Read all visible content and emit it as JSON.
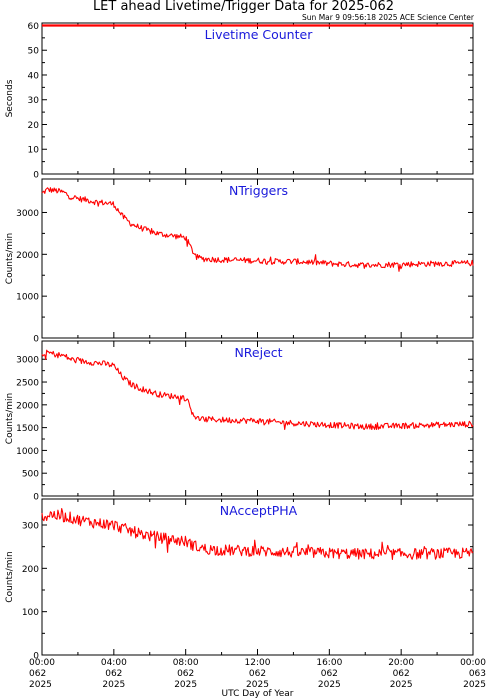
{
  "header": {
    "title": "LET ahead Livetime/Trigger Data for 2025-062",
    "subtitle": "Sun Mar  9 09:56:18 2025 ACE Science Center"
  },
  "colors": {
    "series": "#ff0000",
    "label": "#1a1adb",
    "axis": "#000000"
  },
  "chart_data": [
    {
      "type": "line",
      "title": "Livetime Counter",
      "ylabel": "Seconds",
      "ylim": [
        0,
        61
      ],
      "yticks": [
        "0",
        "10",
        "20",
        "30",
        "40",
        "50",
        "60"
      ],
      "x": [
        0,
        24
      ],
      "series": [
        {
          "values": [
            60,
            60
          ]
        }
      ]
    },
    {
      "type": "line",
      "title": "NTriggers",
      "ylabel": "Counts/min",
      "ylim": [
        0,
        3800
      ],
      "yticks": [
        "0",
        "1000",
        "2000",
        "3000"
      ],
      "x": [
        0,
        0.3,
        0.8,
        1.2,
        1.6,
        2.0,
        2.5,
        3.0,
        3.5,
        4.0,
        4.5,
        5.0,
        5.5,
        6.0,
        6.5,
        7.0,
        7.5,
        8.0,
        8.3,
        8.6,
        9.0,
        9.5,
        10,
        11,
        12,
        13,
        14,
        15,
        16,
        17,
        18,
        19,
        20,
        21,
        22,
        23,
        24
      ],
      "series": [
        {
          "values": [
            3450,
            3550,
            3520,
            3480,
            3380,
            3330,
            3300,
            3250,
            3230,
            3200,
            2900,
            2720,
            2630,
            2550,
            2490,
            2460,
            2430,
            2400,
            2150,
            1930,
            1890,
            1880,
            1870,
            1860,
            1850,
            1830,
            1830,
            1810,
            1780,
            1760,
            1740,
            1750,
            1760,
            1770,
            1780,
            1780,
            1790
          ],
          "noise": 70
        }
      ]
    },
    {
      "type": "line",
      "title": "NReject",
      "ylabel": "Counts/min",
      "ylim": [
        0,
        3400
      ],
      "yticks": [
        "0",
        "500",
        "1000",
        "1500",
        "2000",
        "2500",
        "3000"
      ],
      "x": [
        0,
        0.3,
        0.8,
        1.2,
        1.6,
        2.0,
        2.5,
        3.0,
        3.5,
        4.0,
        4.5,
        5.0,
        5.5,
        6.0,
        6.5,
        7.0,
        7.5,
        8.0,
        8.3,
        8.6,
        9.0,
        9.5,
        10,
        11,
        12,
        13,
        14,
        15,
        16,
        17,
        18,
        19,
        20,
        21,
        22,
        23,
        24
      ],
      "series": [
        {
          "values": [
            3050,
            3150,
            3100,
            3080,
            3000,
            2960,
            2950,
            2920,
            2900,
            2860,
            2600,
            2440,
            2360,
            2290,
            2230,
            2200,
            2180,
            2150,
            1900,
            1700,
            1680,
            1680,
            1670,
            1660,
            1650,
            1620,
            1600,
            1580,
            1560,
            1540,
            1520,
            1530,
            1540,
            1550,
            1560,
            1570,
            1580
          ],
          "noise": 65
        }
      ]
    },
    {
      "type": "line",
      "title": "NAcceptPHA",
      "ylabel": "Counts/min",
      "ylim": [
        0,
        360
      ],
      "yticks": [
        "0",
        "100",
        "200",
        "300"
      ],
      "x": [
        0,
        0.5,
        1.0,
        1.5,
        2.0,
        3.0,
        4.0,
        5.0,
        6.0,
        7.0,
        8.0,
        8.5,
        9.0,
        10,
        12,
        14,
        16,
        18,
        20,
        22,
        24
      ],
      "series": [
        {
          "values": [
            315,
            325,
            320,
            318,
            312,
            305,
            300,
            285,
            275,
            268,
            262,
            252,
            245,
            242,
            240,
            237,
            235,
            233,
            233,
            234,
            235
          ],
          "noise": 13
        }
      ]
    }
  ],
  "xaxis": {
    "label": "UTC Day of Year",
    "ticks": [
      {
        "time": "00:00",
        "doy": "062",
        "year": "2025"
      },
      {
        "time": "04:00",
        "doy": "062",
        "year": "2025"
      },
      {
        "time": "08:00",
        "doy": "062",
        "year": "2025"
      },
      {
        "time": "12:00",
        "doy": "062",
        "year": "2025"
      },
      {
        "time": "16:00",
        "doy": "062",
        "year": "2025"
      },
      {
        "time": "20:00",
        "doy": "062",
        "year": "2025"
      },
      {
        "time": "00:00",
        "doy": "063",
        "year": "2025"
      }
    ]
  }
}
